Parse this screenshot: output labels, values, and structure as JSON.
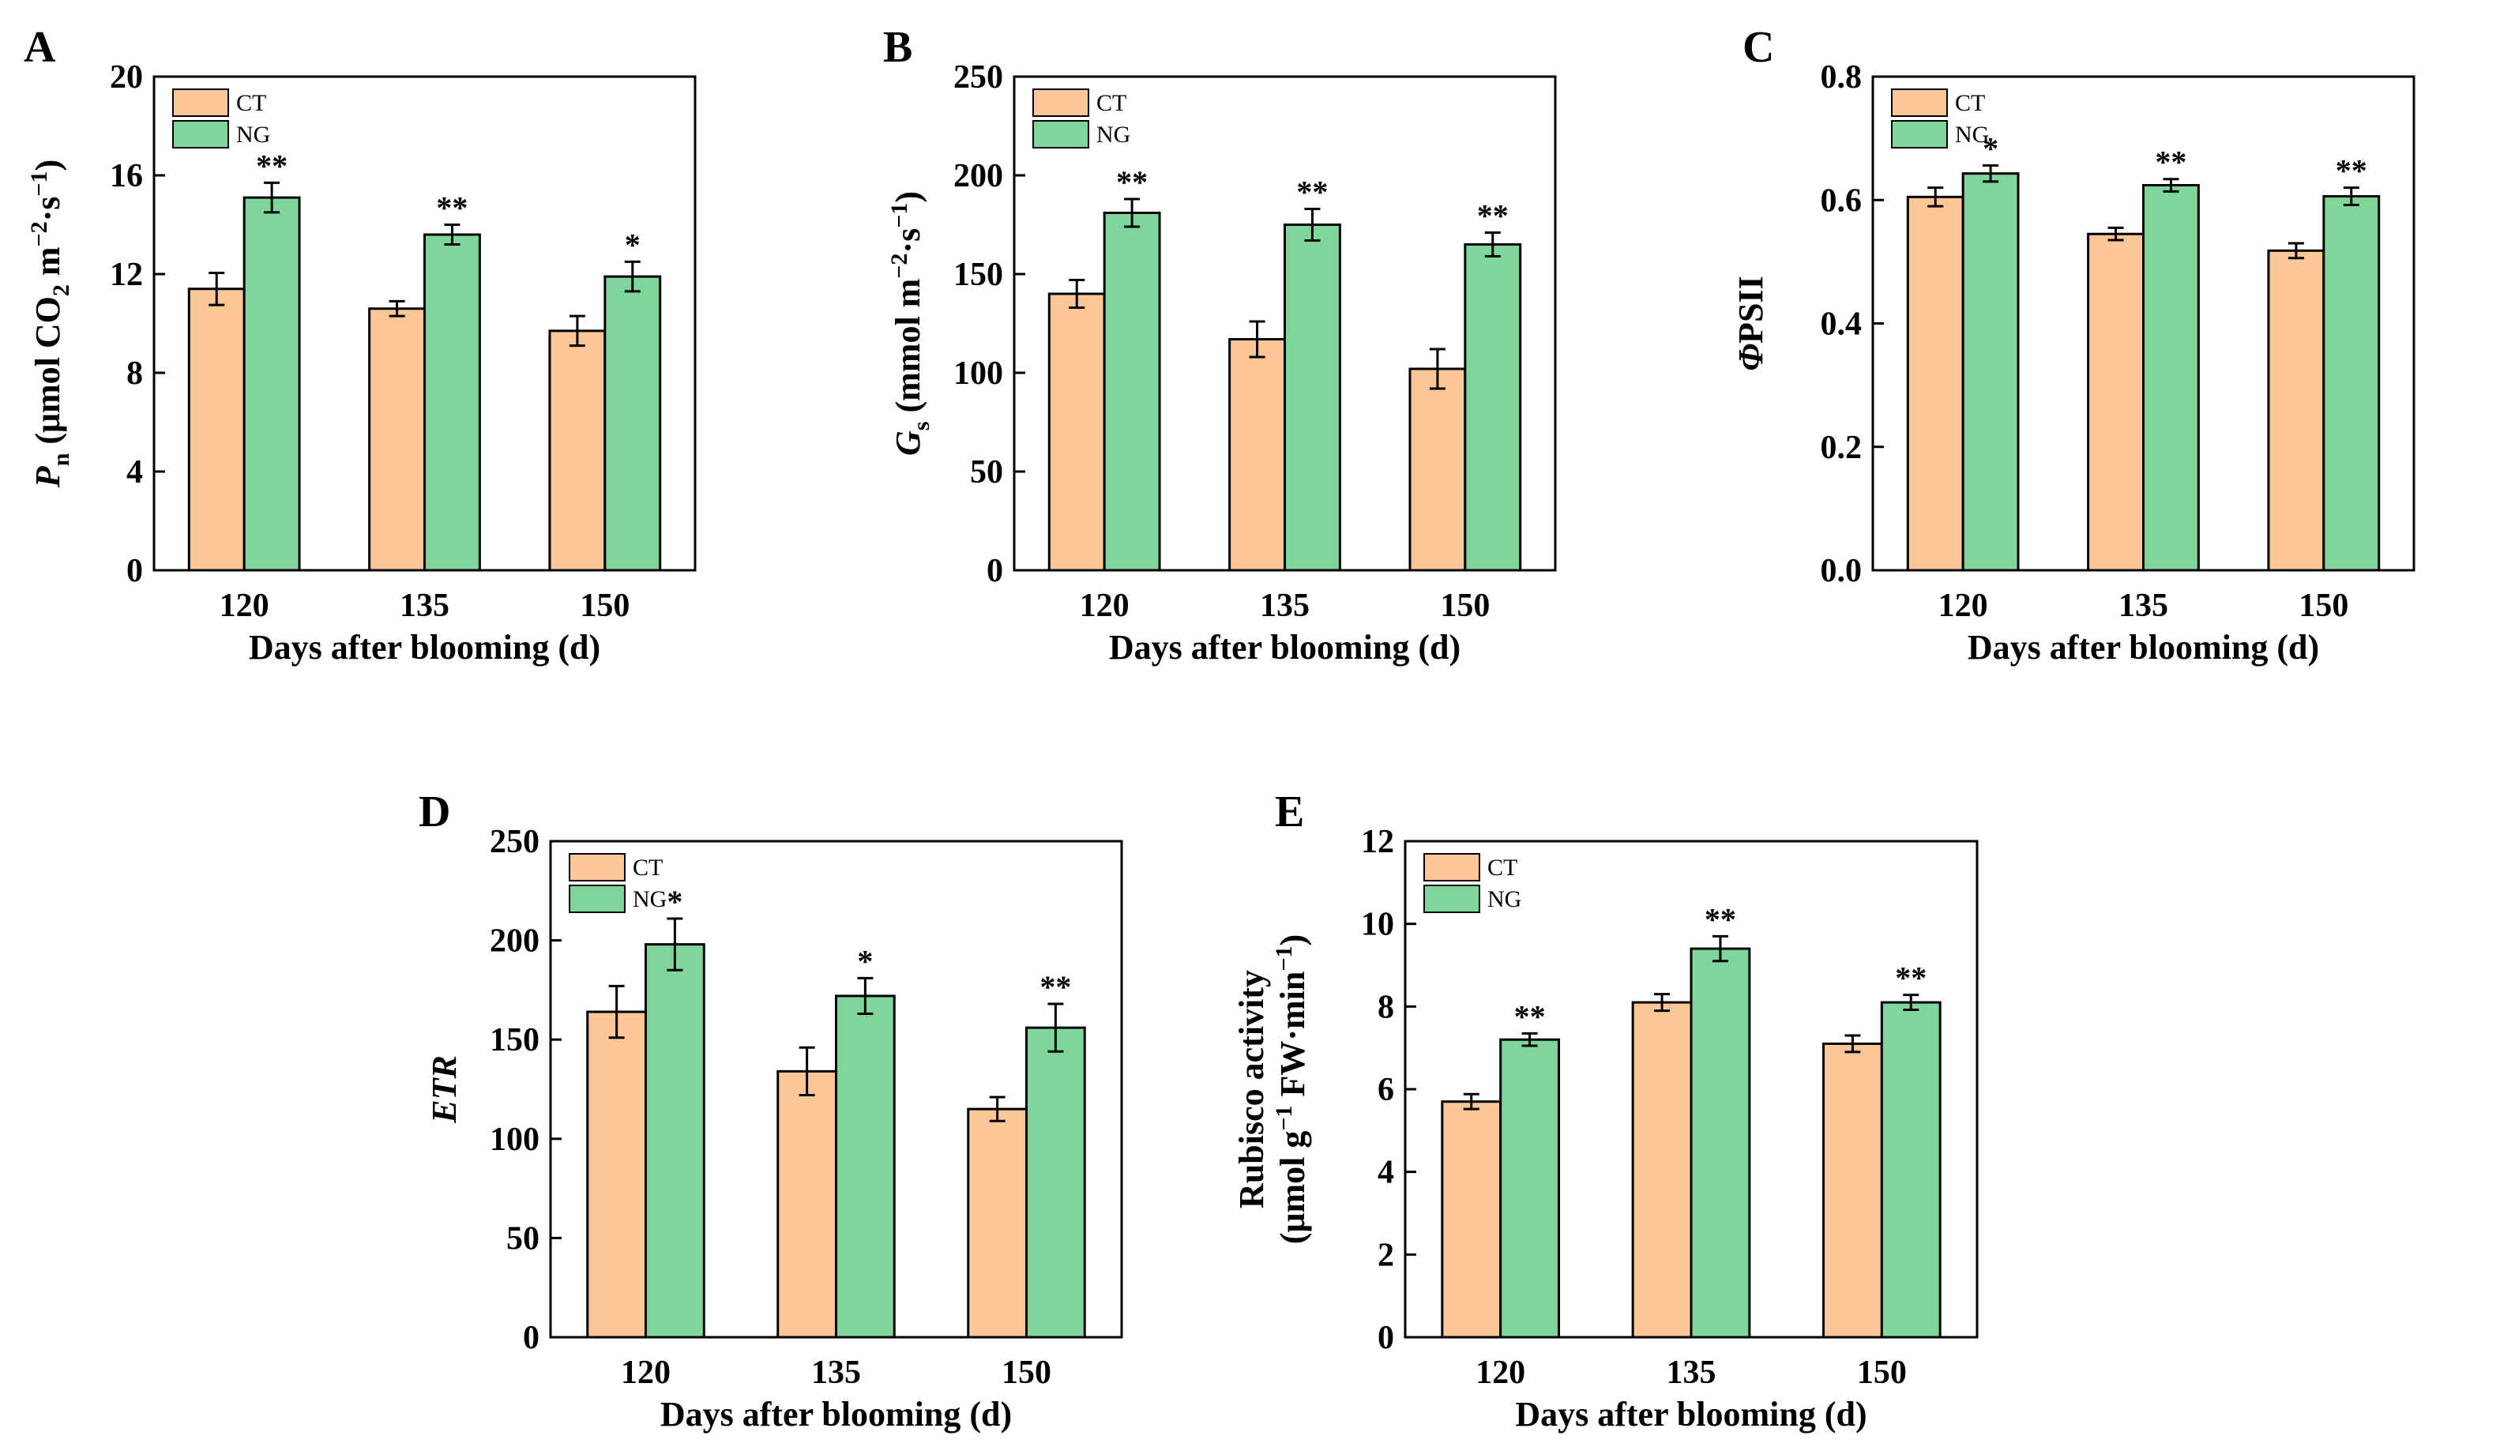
{
  "figure": {
    "colors": {
      "CT": "#fbc799",
      "NG": "#7fd69a"
    }
  },
  "chart_data": [
    {
      "panel": "A",
      "type": "bar",
      "categories": [
        "120",
        "135",
        "150"
      ],
      "series": [
        {
          "name": "CT",
          "values": [
            11.4,
            10.6,
            9.7
          ],
          "errors": [
            0.65,
            0.3,
            0.6
          ]
        },
        {
          "name": "NG",
          "values": [
            15.1,
            13.6,
            11.9
          ],
          "errors": [
            0.6,
            0.4,
            0.6
          ]
        }
      ],
      "significance": [
        "**",
        "**",
        "*"
      ],
      "xlabel": "Days after blooming (d)",
      "ylabel": {
        "base": "P",
        "sub": "n",
        "text": " (μmol CO",
        "sub2": "2",
        "text2": " m",
        "sup1": "−2",
        "text3": "·s",
        "sup2": "−1",
        "text4": ")"
      },
      "ylim": [
        0,
        20
      ],
      "yticks": [
        "0",
        "4",
        "8",
        "12",
        "16",
        "20"
      ],
      "legend": [
        "CT",
        "NG"
      ]
    },
    {
      "panel": "B",
      "type": "bar",
      "categories": [
        "120",
        "135",
        "150"
      ],
      "series": [
        {
          "name": "CT",
          "values": [
            140,
            117,
            102
          ],
          "errors": [
            7,
            9,
            10
          ]
        },
        {
          "name": "NG",
          "values": [
            181,
            175,
            165
          ],
          "errors": [
            7,
            8,
            6
          ]
        }
      ],
      "significance": [
        "**",
        "**",
        "**"
      ],
      "xlabel": "Days after blooming (d)",
      "ylabel": {
        "base": "G",
        "sub": "s",
        "text": " (mmol m",
        "sup1": "−2",
        "text2": "·s",
        "sup2": "−1",
        "text3": ")"
      },
      "ylim": [
        0,
        250
      ],
      "yticks": [
        "0",
        "50",
        "100",
        "150",
        "200",
        "250"
      ],
      "legend": [
        "CT",
        "NG"
      ]
    },
    {
      "panel": "C",
      "type": "bar",
      "categories": [
        "120",
        "135",
        "150"
      ],
      "series": [
        {
          "name": "CT",
          "values": [
            0.605,
            0.545,
            0.518
          ],
          "errors": [
            0.015,
            0.01,
            0.012
          ]
        },
        {
          "name": "NG",
          "values": [
            0.643,
            0.624,
            0.606
          ],
          "errors": [
            0.013,
            0.01,
            0.014
          ]
        }
      ],
      "significance": [
        "*",
        "**",
        "**"
      ],
      "xlabel": "Days after blooming (d)",
      "ylabel": {
        "italic": "Φ",
        "text": "PSII"
      },
      "ylim": [
        0,
        0.8
      ],
      "yticks": [
        "0.0",
        "0.2",
        "0.4",
        "0.6",
        "0.8"
      ],
      "legend": [
        "CT",
        "NG"
      ]
    },
    {
      "panel": "D",
      "type": "bar",
      "categories": [
        "120",
        "135",
        "150"
      ],
      "series": [
        {
          "name": "CT",
          "values": [
            164,
            134,
            115
          ],
          "errors": [
            13,
            12,
            6
          ]
        },
        {
          "name": "NG",
          "values": [
            198,
            172,
            156
          ],
          "errors": [
            13,
            9,
            12
          ]
        }
      ],
      "significance": [
        "*",
        "*",
        "**"
      ],
      "xlabel": "Days after blooming (d)",
      "ylabel": {
        "italic": "ETR"
      },
      "ylim": [
        0,
        250
      ],
      "yticks": [
        "0",
        "50",
        "100",
        "150",
        "200",
        "250"
      ],
      "legend": [
        "CT",
        "NG"
      ]
    },
    {
      "panel": "E",
      "type": "bar",
      "categories": [
        "120",
        "135",
        "150"
      ],
      "series": [
        {
          "name": "CT",
          "values": [
            5.7,
            8.1,
            7.1
          ],
          "errors": [
            0.18,
            0.2,
            0.2
          ]
        },
        {
          "name": "NG",
          "values": [
            7.2,
            9.4,
            8.1
          ],
          "errors": [
            0.15,
            0.3,
            0.18
          ]
        }
      ],
      "significance": [
        "**",
        "**",
        "**"
      ],
      "xlabel": "Days after blooming (d)",
      "ylabel": {
        "line1": "Rubisco activity",
        "text": "(μmol g",
        "sup1": "−1",
        "text2": " FW·min",
        "sup2": "−1",
        "text3": ")"
      },
      "ylim": [
        0,
        12
      ],
      "yticks": [
        "0",
        "2",
        "4",
        "6",
        "8",
        "10",
        "12"
      ],
      "legend": [
        "CT",
        "NG"
      ]
    }
  ]
}
